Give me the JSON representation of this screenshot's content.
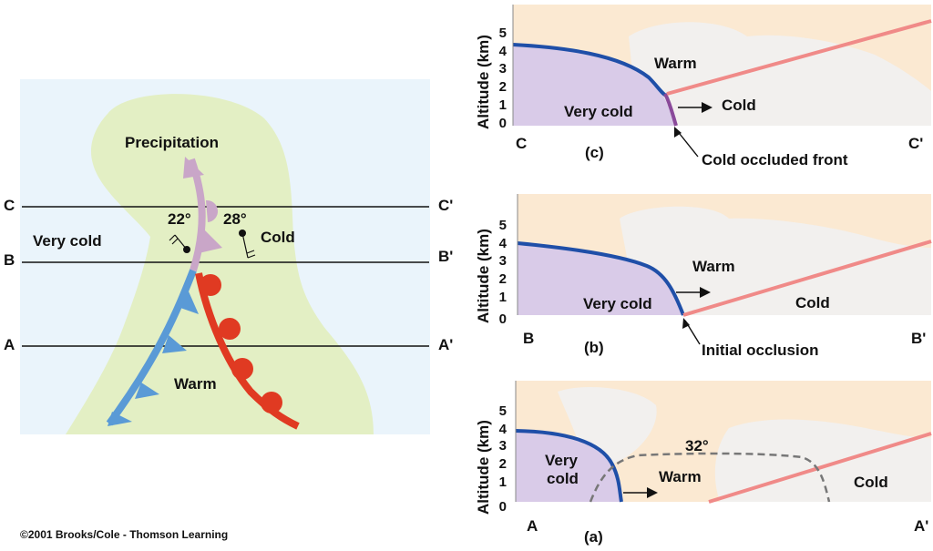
{
  "map": {
    "precipitation": "Precipitation",
    "very_cold": "Very cold",
    "cold": "Cold",
    "warm": "Warm",
    "temp_left": "22°",
    "temp_right": "28°",
    "line_c": "C",
    "line_c_prime": "C'",
    "line_b": "B",
    "line_b_prime": "B'",
    "line_a": "A",
    "line_a_prime": "A'"
  },
  "panel_c": {
    "letter": "(c)",
    "left": "C",
    "right": "C'",
    "warm": "Warm",
    "very_cold": "Very cold",
    "cold": "Cold",
    "annotation": "Cold occluded front",
    "ylabel": "Altitude (km)",
    "ticks": [
      "5",
      "4",
      "3",
      "2",
      "1",
      "0"
    ]
  },
  "panel_b": {
    "letter": "(b)",
    "left": "B",
    "right": "B'",
    "warm": "Warm",
    "very_cold": "Very cold",
    "cold": "Cold",
    "annotation": "Initial occlusion",
    "ylabel": "Altitude (km)",
    "ticks": [
      "5",
      "4",
      "3",
      "2",
      "1",
      "0"
    ]
  },
  "panel_a": {
    "letter": "(a)",
    "left": "A",
    "right": "A'",
    "warm": "Warm",
    "very_cold_1": "Very",
    "very_cold_2": "cold",
    "cold": "Cold",
    "temp": "32°",
    "ylabel": "Altitude (km)",
    "ticks": [
      "5",
      "4",
      "3",
      "2",
      "1",
      "0"
    ]
  },
  "copyright": "©2001 Brooks/Cole - Thomson Learning",
  "colors": {
    "map_bg": "#eaf4fb",
    "precip": "#e3efc4",
    "cold_front": "#5a9ad6",
    "warm_front": "#e03a22",
    "occluded": "#c9a6c8",
    "sky": "#fbe9d2",
    "very_cold_air": "#d9cbe8",
    "front_blue": "#1f4fa8",
    "warm_front_line": "#f08a88"
  }
}
